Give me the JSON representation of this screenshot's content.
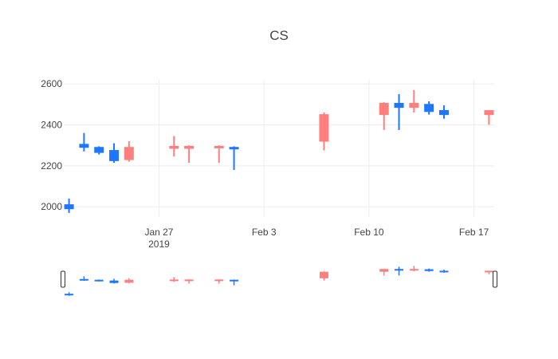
{
  "chart_data": {
    "type": "candlestick",
    "title": "CS",
    "xlabel": "",
    "ylabel": "",
    "ylim": [
      1950,
      2620
    ],
    "y_ticks": [
      2000,
      2200,
      2400,
      2600
    ],
    "x_ticks": [
      {
        "date": "2019-01-27",
        "label": "Jan 27",
        "sublabel": "2019"
      },
      {
        "date": "2019-02-03",
        "label": "Feb 3",
        "sublabel": ""
      },
      {
        "date": "2019-02-10",
        "label": "Feb 10",
        "sublabel": ""
      },
      {
        "date": "2019-02-17",
        "label": "Feb 17",
        "sublabel": ""
      }
    ],
    "xlim": [
      "2019-01-21",
      "2019-02-18"
    ],
    "increasing_color": "#1f77ff",
    "decreasing_color": "#ff7f7f",
    "grid": true,
    "rangeslider": true,
    "candles": [
      {
        "date": "2019-01-21",
        "open": 1990,
        "high": 2040,
        "low": 1970,
        "close": 2010
      },
      {
        "date": "2019-01-22",
        "open": 2290,
        "high": 2360,
        "low": 2270,
        "close": 2305
      },
      {
        "date": "2019-01-23",
        "open": 2265,
        "high": 2295,
        "low": 2255,
        "close": 2290
      },
      {
        "date": "2019-01-24",
        "open": 2225,
        "high": 2310,
        "low": 2215,
        "close": 2275
      },
      {
        "date": "2019-01-25",
        "open": 2290,
        "high": 2320,
        "low": 2220,
        "close": 2230
      },
      {
        "date": "2019-01-28",
        "open": 2295,
        "high": 2345,
        "low": 2245,
        "close": 2285
      },
      {
        "date": "2019-01-29",
        "open": 2295,
        "high": 2300,
        "low": 2215,
        "close": 2285
      },
      {
        "date": "2019-01-31",
        "open": 2295,
        "high": 2300,
        "low": 2215,
        "close": 2290
      },
      {
        "date": "2019-02-01",
        "open": 2285,
        "high": 2295,
        "low": 2180,
        "close": 2290
      },
      {
        "date": "2019-02-07",
        "open": 2450,
        "high": 2460,
        "low": 2275,
        "close": 2320
      },
      {
        "date": "2019-02-11",
        "open": 2505,
        "high": 2510,
        "low": 2375,
        "close": 2450
      },
      {
        "date": "2019-02-12",
        "open": 2485,
        "high": 2550,
        "low": 2375,
        "close": 2505
      },
      {
        "date": "2019-02-13",
        "open": 2505,
        "high": 2570,
        "low": 2460,
        "close": 2485
      },
      {
        "date": "2019-02-14",
        "open": 2465,
        "high": 2515,
        "low": 2450,
        "close": 2500
      },
      {
        "date": "2019-02-15",
        "open": 2450,
        "high": 2495,
        "low": 2430,
        "close": 2470
      },
      {
        "date": "2019-02-18",
        "open": 2470,
        "high": 2470,
        "low": 2400,
        "close": 2450
      }
    ]
  }
}
